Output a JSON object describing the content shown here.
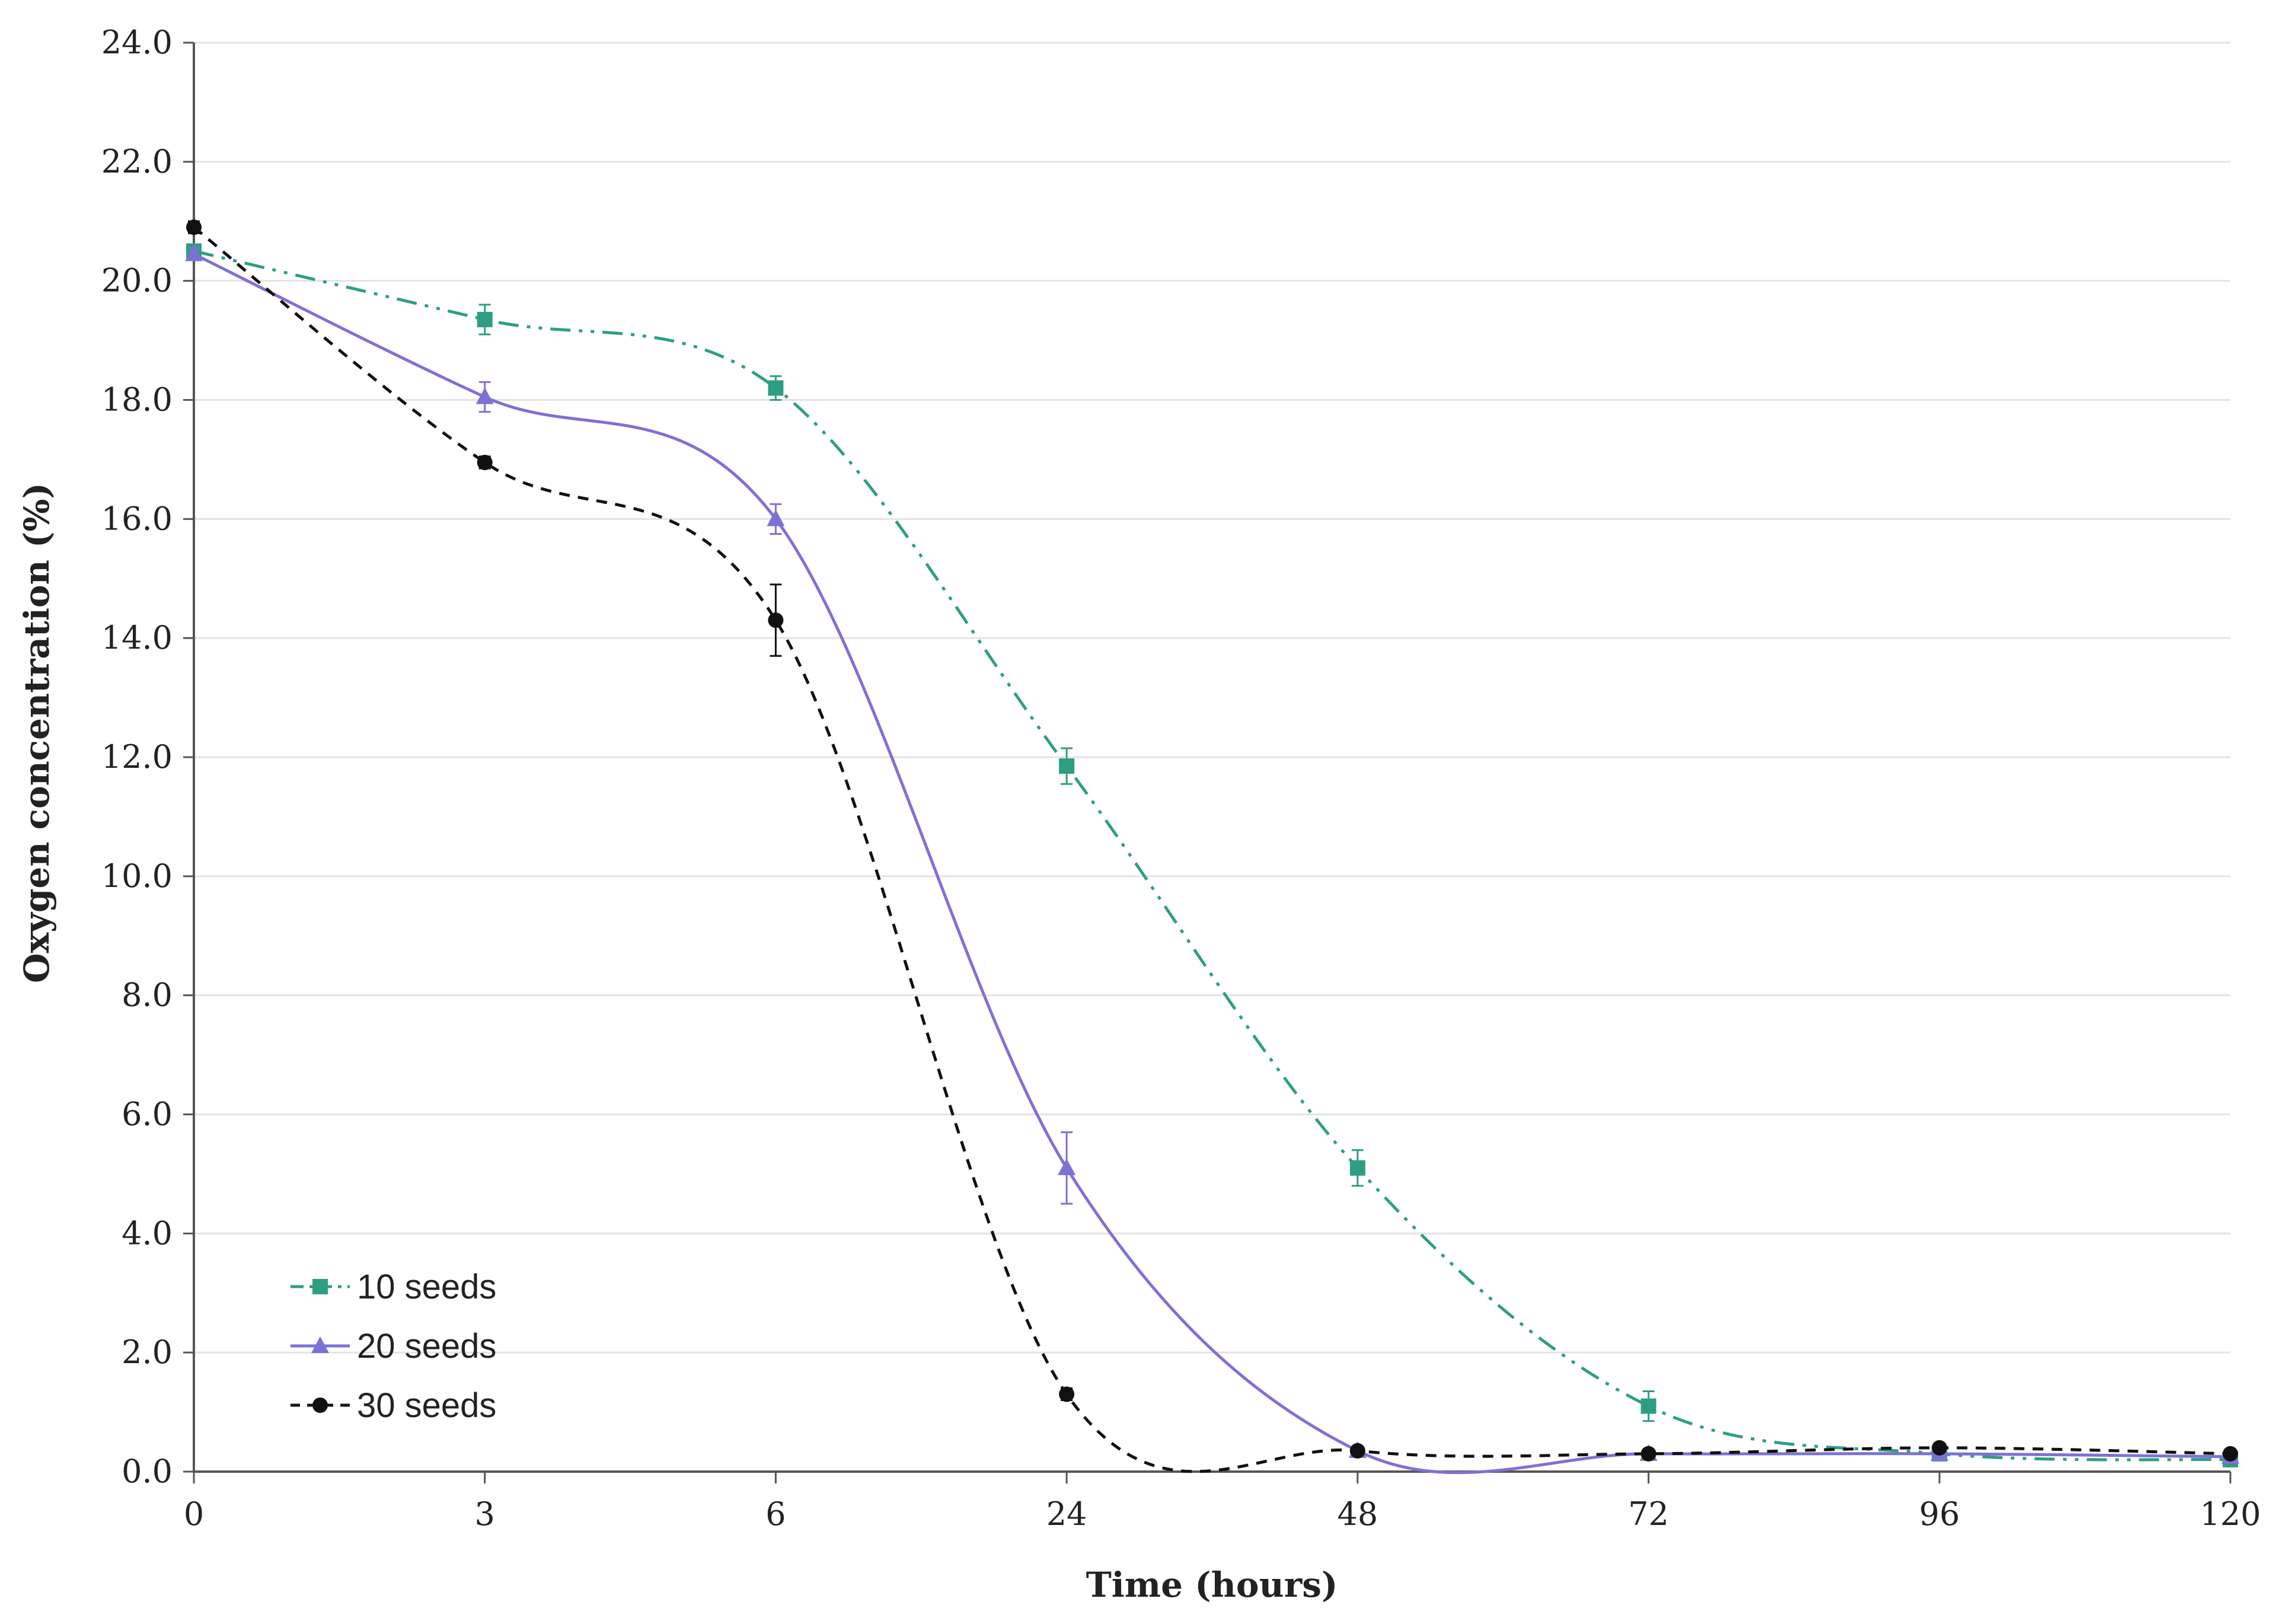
{
  "chart_data": {
    "type": "line",
    "title": "",
    "xlabel": "Time (hours)",
    "ylabel": "Oxygen concentration (%)",
    "categories": [
      "0",
      "3",
      "6",
      "24",
      "48",
      "72",
      "96",
      "120"
    ],
    "ylim": [
      0,
      24
    ],
    "yticks": [
      "0.0",
      "2.0",
      "4.0",
      "6.0",
      "8.0",
      "10.0",
      "12.0",
      "14.0",
      "16.0",
      "18.0",
      "20.0",
      "22.0",
      "24.0"
    ],
    "grid": true,
    "legend_position": "bottom-left",
    "series": [
      {
        "name": "10 seeds",
        "marker": "square",
        "line_style": "dash-dot-dot",
        "color": "#2e9e82",
        "values": [
          20.5,
          19.35,
          18.2,
          11.85,
          5.1,
          1.1,
          0.3,
          0.2
        ],
        "errors": [
          0.1,
          0.25,
          0.2,
          0.3,
          0.3,
          0.25,
          0.05,
          0.05
        ]
      },
      {
        "name": "20 seeds",
        "marker": "triangle",
        "line_style": "solid",
        "color": "#7b72d6",
        "values": [
          20.45,
          18.05,
          16.0,
          5.1,
          0.35,
          0.3,
          0.3,
          0.25
        ],
        "errors": [
          0.1,
          0.25,
          0.25,
          0.6,
          0.05,
          0.05,
          0.05,
          0.05
        ]
      },
      {
        "name": "30 seeds",
        "marker": "circle",
        "line_style": "dashed",
        "color": "#111111",
        "values": [
          20.9,
          16.95,
          14.3,
          1.3,
          0.35,
          0.3,
          0.4,
          0.3
        ],
        "errors": [
          0.1,
          0.1,
          0.6,
          0.1,
          0.05,
          0.05,
          0.05,
          0.05
        ]
      }
    ]
  }
}
